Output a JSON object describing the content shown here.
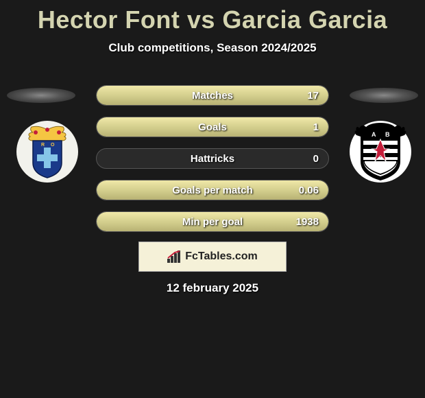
{
  "title": "Hector Font vs Garcia Garcia",
  "subtitle": "Club competitions, Season 2024/2025",
  "date": "12 february 2025",
  "brand": "FcTables.com",
  "colors": {
    "background": "#1a1a1a",
    "title_color": "#d4d4b0",
    "bar_fill_top": "#f0e8a8",
    "bar_fill_bottom": "#b8b274",
    "bar_bg": "#2a2a2a",
    "text_color": "#ffffff"
  },
  "stats": [
    {
      "label": "Matches",
      "value": "17",
      "fill_pct": 100
    },
    {
      "label": "Goals",
      "value": "1",
      "fill_pct": 100
    },
    {
      "label": "Hattricks",
      "value": "0",
      "fill_pct": 0
    },
    {
      "label": "Goals per match",
      "value": "0.06",
      "fill_pct": 100
    },
    {
      "label": "Min per goal",
      "value": "1938",
      "fill_pct": 100
    }
  ],
  "crests": {
    "left": {
      "name": "Real Oviedo",
      "bg": "#f2f2ec",
      "primary": "#1a3a8a",
      "accent": "#f5c542"
    },
    "right": {
      "name": "Albacete",
      "bg": "#ffffff",
      "primary": "#000000",
      "accent": "#c41e3a"
    }
  }
}
